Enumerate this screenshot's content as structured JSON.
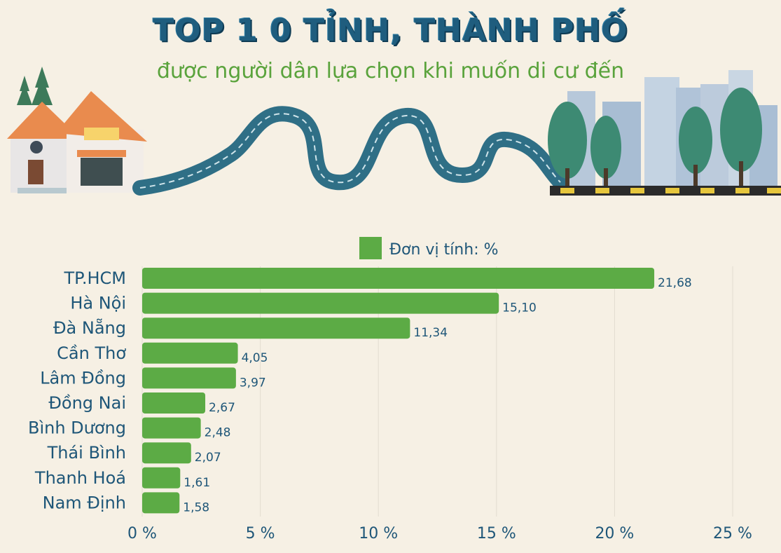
{
  "title": "TOP 1 0 TỈNH, THÀNH PHỐ",
  "subtitle": "được người dân lựa chọn khi muốn di cư đến",
  "colors": {
    "bar": "#5cab45",
    "text": "#1e5678",
    "background": "#f6f0e4"
  },
  "chart_data": {
    "type": "bar",
    "orientation": "horizontal",
    "legend": "Đơn vị tính: %",
    "legend_placement": "top-center",
    "categories": [
      "TP.HCM",
      "Hà Nội",
      "Đà Nẵng",
      "Cần Thơ",
      "Lâm Đồng",
      "Đồng Nai",
      "Bình Dương",
      "Thái Bình",
      "Thanh Hoá",
      "Nam Định"
    ],
    "values": [
      21.68,
      15.1,
      11.34,
      4.05,
      3.97,
      2.67,
      2.48,
      2.07,
      1.61,
      1.58
    ],
    "value_labels": [
      "21,68",
      "15,10",
      "11,34",
      "4,05",
      "3,97",
      "2,67",
      "2,48",
      "2,07",
      "1,61",
      "1,58"
    ],
    "xlim": [
      0,
      25
    ],
    "x_ticks": [
      0,
      5,
      10,
      15,
      20,
      25
    ],
    "x_tick_labels": [
      "0 %",
      "5 %",
      "10 %",
      "15 %",
      "20 %",
      "25 %"
    ],
    "grid": true
  }
}
